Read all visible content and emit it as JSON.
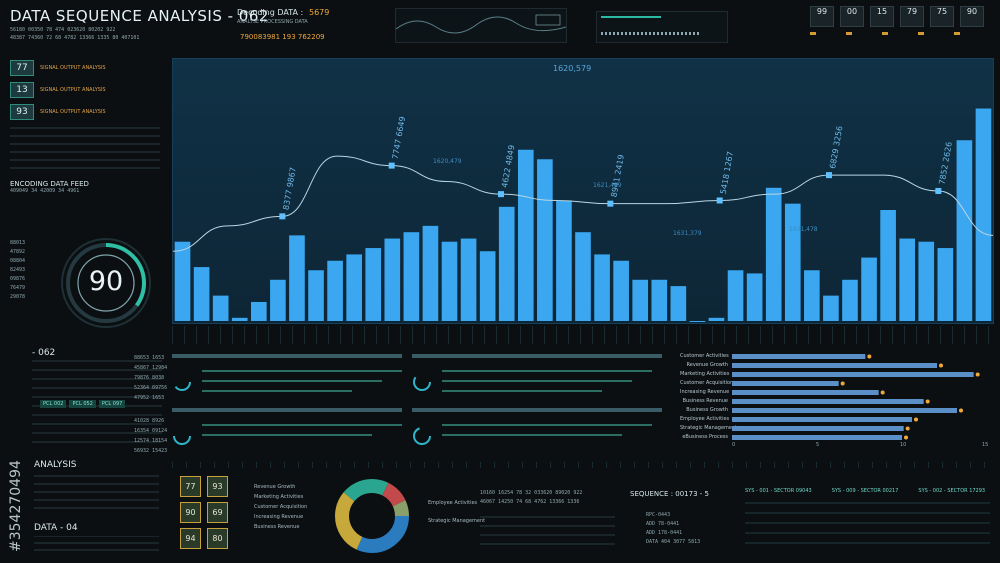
{
  "header": {
    "title": "DATA SEQUENCE ANALYSIS - 062",
    "decoding_label": "Decoding DATA :",
    "decoding_value": "5679",
    "sub_label": "ANALYSE PROCESSING DATA",
    "id_line": "790083981 193 762209",
    "code_rows": [
      "56180 00350 78 474 023620 80202 922",
      "48387 74360 72 68 4782 13366 1335 80 407101"
    ],
    "top_boxes": [
      "99",
      "00",
      "15",
      "79",
      "75",
      "90"
    ]
  },
  "left": {
    "readouts": [
      {
        "value": "77",
        "label": "SIGNAL OUTPUT ANALYSIS"
      },
      {
        "value": "13",
        "label": "SIGNAL OUTPUT ANALYSIS"
      },
      {
        "value": "93",
        "label": "SIGNAL OUTPUT ANALYSIS"
      }
    ],
    "feed_title": "ENCODING DATA FEED",
    "feed_codes": "409049 34 42009 34 4961",
    "gauge_value": "90",
    "gauge_progress": 0.35,
    "section_062": "- 062",
    "analysis_label": "ANALYSIS",
    "data_label": "DATA - 04",
    "watermark_id": "#354270494",
    "mid_boxes": [
      "77",
      "90",
      "94"
    ],
    "mid_boxes_right": [
      "93",
      "69",
      "80"
    ],
    "num_column": [
      "88013",
      "47892",
      "08804",
      "82493",
      "09876",
      "76479",
      "29078"
    ]
  },
  "main_chart": {
    "chart_data": {
      "type": "bar",
      "values": [
        25,
        17,
        8,
        1,
        6,
        13,
        27,
        16,
        19,
        21,
        23,
        26,
        28,
        30,
        25,
        26,
        22,
        36,
        54,
        51,
        38,
        28,
        21,
        19,
        13,
        13,
        11,
        0,
        1,
        16,
        15,
        42,
        37,
        16,
        8,
        13,
        20,
        35,
        26,
        25,
        23,
        57,
        67
      ],
      "max": 70,
      "line": [
        22,
        30,
        33,
        52,
        49,
        44,
        40,
        38,
        37,
        37,
        38,
        40,
        46,
        46,
        41,
        27
      ],
      "points": [
        {
          "label": "8377 9867"
        },
        {
          "label": "7747 6649"
        },
        {
          "label": "4622 4849"
        },
        {
          "label": "8941 2419"
        },
        {
          "label": "5418 1267"
        },
        {
          "label": "6829 3256"
        },
        {
          "label": "7852 2626"
        }
      ],
      "annotations": [
        "1620,579",
        "1620,479",
        "1621,489",
        "1631,379",
        "1631,478"
      ]
    }
  },
  "mid_left": {
    "row_codes": [
      "88653 1653",
      "45867 12984",
      "79876 8038",
      "52364 09756",
      "47952 1653"
    ],
    "chips": [
      "PCL 002",
      "PCL 052",
      "PCL 097"
    ],
    "numbers": [
      "41028 8926",
      "16354 09124",
      "12574 18154",
      "56932 15423"
    ]
  },
  "bar_chart_right": {
    "chart_data": {
      "type": "bar",
      "orientation": "horizontal",
      "categories": [
        "Customer Activities",
        "Revenue Growth",
        "Marketing Activities",
        "Customer Acquisition",
        "Increasing Revenue",
        "Business Revenue",
        "Business Growth",
        "Employee Activities",
        "Strategic Management",
        "eBusiness Process"
      ],
      "values": [
        8.0,
        12.3,
        14.5,
        6.4,
        8.8,
        11.5,
        13.5,
        10.8,
        10.3,
        10.2
      ],
      "xlim": [
        0,
        15
      ],
      "ticks": [
        "0",
        "5",
        "10",
        "15"
      ]
    }
  },
  "bottom": {
    "donut": {
      "legend_left": [
        "Revenue Growth",
        "Marketing Activities",
        "Customer Acquisition",
        "Increasing Revenue",
        "Business Revenue"
      ],
      "legend_right": [
        "Employee Activities",
        "Strategic Management"
      ]
    },
    "sequence_label": "SEQUENCE : 00173 - 5",
    "sector_labels": [
      "SYS - 001 - SECTOR 09043",
      "SYS - 009 - SECTOR 00217",
      "SYS - 002 - SECTOR 17293"
    ],
    "mid_codes": [
      "10160 16254 78 32 033620 89020 922",
      "46067 14250 74 68 4762 13366 1336"
    ],
    "sequence_rows": [
      "RPC-0443",
      "ADD 78-0441",
      "ADD 178-0441",
      "DATA 404 3077 5813"
    ]
  }
}
